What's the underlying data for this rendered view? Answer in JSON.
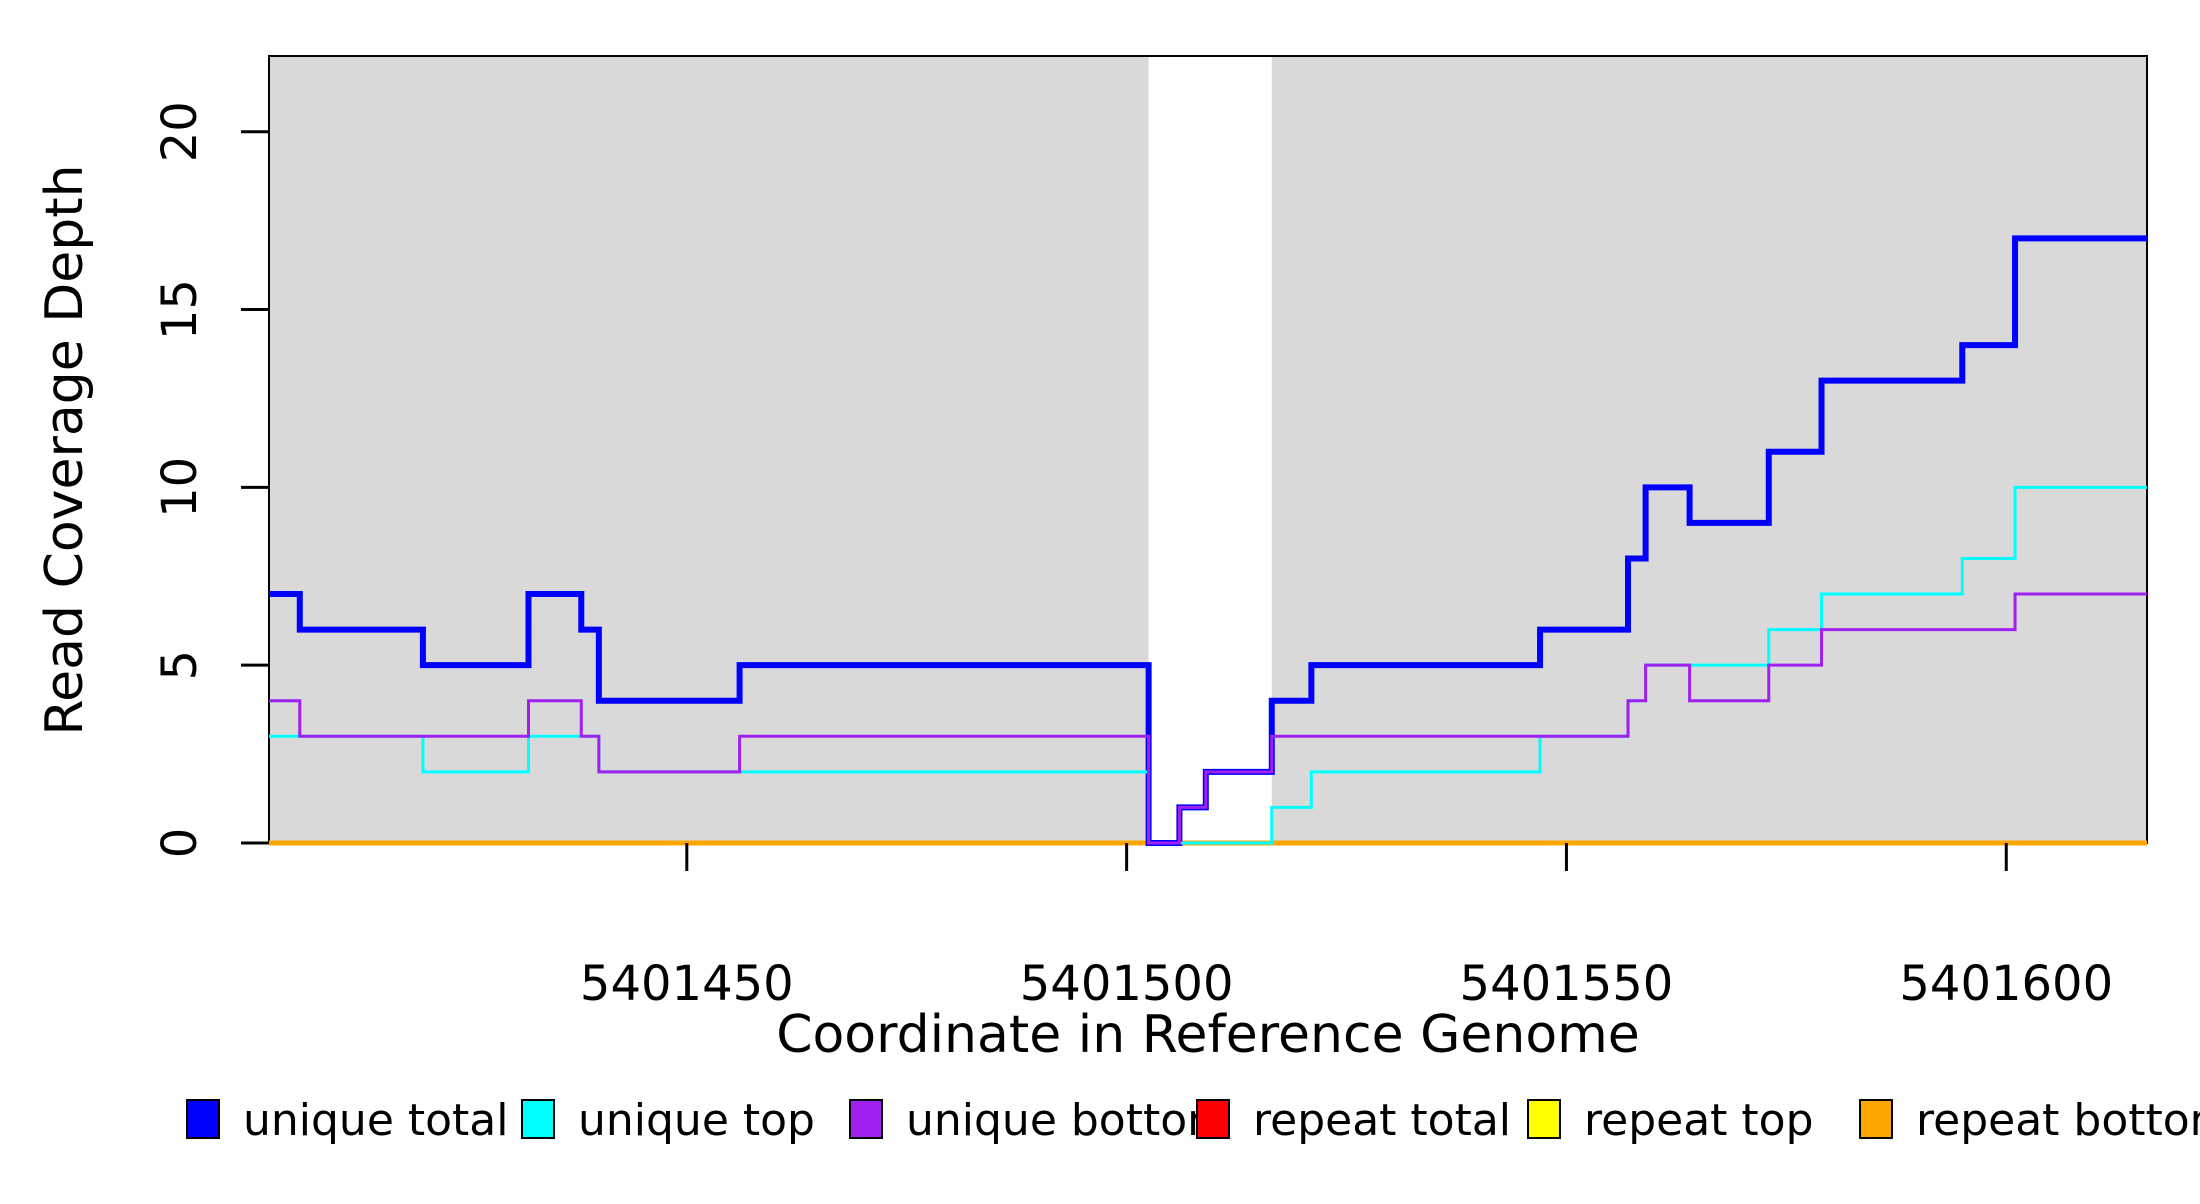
{
  "chart_data": {
    "type": "line",
    "subtype": "step-after",
    "title": "",
    "xlabel": "Coordinate in Reference Genome",
    "ylabel": "Read Coverage Depth",
    "xlim": [
      5401402.5,
      5401616
    ],
    "ylim": [
      0,
      22.13
    ],
    "x_ticks": [
      {
        "value": 5401450,
        "label": "5401450"
      },
      {
        "value": 5401500,
        "label": "5401500"
      },
      {
        "value": 5401550,
        "label": "5401550"
      },
      {
        "value": 5401600,
        "label": "5401600"
      }
    ],
    "y_ticks": [
      {
        "value": 0,
        "label": "0"
      },
      {
        "value": 5,
        "label": "5"
      },
      {
        "value": 10,
        "label": "10"
      },
      {
        "value": 15,
        "label": "15"
      },
      {
        "value": 20,
        "label": "20"
      }
    ],
    "grid": false,
    "panel_fill": "#d9d9d9",
    "panel_border_color": "#000000",
    "shaded_regions": [
      {
        "x0": 5401402.5,
        "x1": 5401502.5
      },
      {
        "x0": 5401516.5,
        "x1": 5401616
      }
    ],
    "gap_region": {
      "x0": 5401502.5,
      "x1": 5401516.5,
      "fill": "#ffffff"
    },
    "series": [
      {
        "name": "repeat total",
        "color": "#ff0000",
        "line_width": 3,
        "steps": [
          [
            5401402.5,
            0
          ]
        ],
        "x_end": 5401616
      },
      {
        "name": "repeat top",
        "color": "#ffff00",
        "line_width": 3,
        "steps": [
          [
            5401402.5,
            0
          ]
        ],
        "x_end": 5401616
      },
      {
        "name": "repeat bottom",
        "color": "#ffa500",
        "line_width": 5,
        "steps": [
          [
            5401402.5,
            0
          ]
        ],
        "x_end": 5401616
      },
      {
        "name": "unique total",
        "color": "#0000ff",
        "line_width": 6,
        "steps": [
          [
            5401402.5,
            7
          ],
          [
            5401406,
            6
          ],
          [
            5401420,
            5
          ],
          [
            5401432,
            7
          ],
          [
            5401438,
            6
          ],
          [
            5401440,
            4
          ],
          [
            5401456,
            5
          ],
          [
            5401502.5,
            0
          ],
          [
            5401506,
            1
          ],
          [
            5401509,
            2
          ],
          [
            5401516.5,
            4
          ],
          [
            5401521,
            5
          ],
          [
            5401547,
            6
          ],
          [
            5401557,
            8
          ],
          [
            5401559,
            10
          ],
          [
            5401564,
            9
          ],
          [
            5401573,
            11
          ],
          [
            5401579,
            13
          ],
          [
            5401595,
            14
          ],
          [
            5401601,
            17
          ]
        ],
        "x_end": 5401616
      },
      {
        "name": "unique top",
        "color": "#00ffff",
        "line_width": 3,
        "steps": [
          [
            5401402.5,
            3
          ],
          [
            5401420,
            2
          ],
          [
            5401432,
            3
          ],
          [
            5401440,
            2
          ],
          [
            5401502.5,
            0
          ],
          [
            5401516.5,
            1
          ],
          [
            5401521,
            2
          ],
          [
            5401547,
            3
          ],
          [
            5401557,
            4
          ],
          [
            5401559,
            5
          ],
          [
            5401573,
            6
          ],
          [
            5401579,
            7
          ],
          [
            5401595,
            8
          ],
          [
            5401601,
            10
          ]
        ],
        "x_end": 5401616
      },
      {
        "name": "unique bottom",
        "color": "#a020f0",
        "line_width": 3,
        "steps": [
          [
            5401402.5,
            4
          ],
          [
            5401406,
            3
          ],
          [
            5401432,
            4
          ],
          [
            5401438,
            3
          ],
          [
            5401440,
            2
          ],
          [
            5401456,
            3
          ],
          [
            5401502.5,
            0
          ],
          [
            5401506,
            1
          ],
          [
            5401509,
            2
          ],
          [
            5401516.5,
            3
          ],
          [
            5401557,
            4
          ],
          [
            5401559,
            5
          ],
          [
            5401564,
            4
          ],
          [
            5401573,
            5
          ],
          [
            5401579,
            6
          ],
          [
            5401601,
            7
          ]
        ],
        "x_end": 5401616
      }
    ],
    "legend_position": "bottom",
    "legend": [
      {
        "label": "unique total",
        "color": "#0000ff"
      },
      {
        "label": "unique top",
        "color": "#00ffff"
      },
      {
        "label": "unique bottom",
        "color": "#a020f0"
      },
      {
        "label": "repeat total",
        "color": "#ff0000"
      },
      {
        "label": "repeat top",
        "color": "#ffff00"
      },
      {
        "label": "repeat bottom",
        "color": "#ffa500"
      }
    ]
  }
}
